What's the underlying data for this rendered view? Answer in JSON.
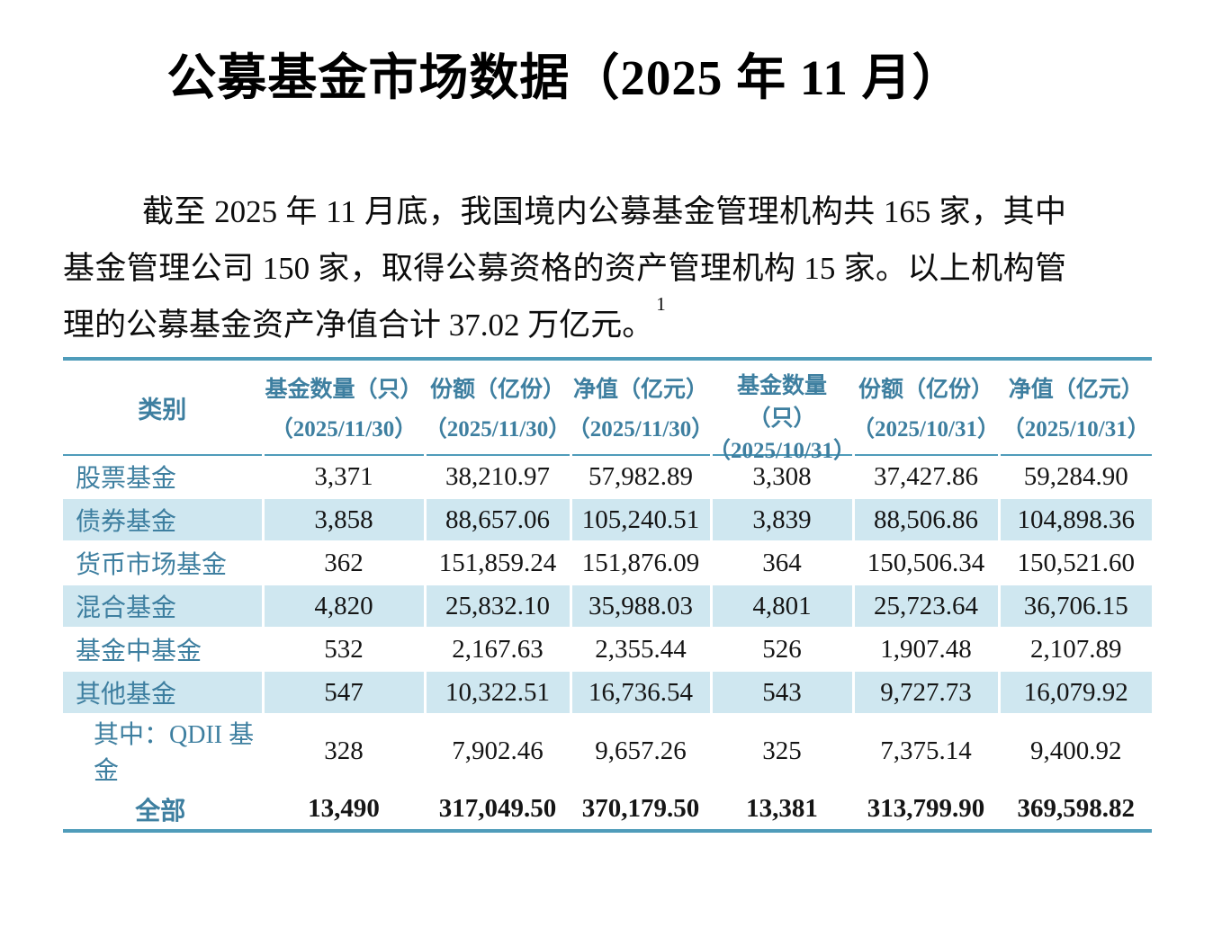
{
  "title": "公募基金市场数据（2025 年 11 月）",
  "intro": {
    "text": "截至 2025 年 11 月底，我国境内公募基金管理机构共 165 家，其中基金管理公司 150 家，取得公募资格的资产管理机构 15 家。以上机构管理的公募基金资产净值合计 37.02 万亿元。",
    "footnote_ref": "1"
  },
  "table": {
    "category_header": "类别",
    "columns": [
      {
        "label": "基金数量（只）",
        "date": "（2025/11/30）"
      },
      {
        "label": "份额（亿份）",
        "date": "（2025/11/30）"
      },
      {
        "label": "净值（亿元）",
        "date": "（2025/11/30）"
      },
      {
        "label": "基金数量（只）",
        "date": "（2025/10/31）"
      },
      {
        "label": "份额（亿份）",
        "date": "（2025/10/31）"
      },
      {
        "label": "净值（亿元）",
        "date": "（2025/10/31）"
      }
    ],
    "rows": [
      {
        "label": "股票基金",
        "values": [
          "3,371",
          "38,210.97",
          "57,982.89",
          "3,308",
          "37,427.86",
          "59,284.90"
        ],
        "shaded": false,
        "style": "normal"
      },
      {
        "label": "债券基金",
        "values": [
          "3,858",
          "88,657.06",
          "105,240.51",
          "3,839",
          "88,506.86",
          "104,898.36"
        ],
        "shaded": true,
        "style": "normal"
      },
      {
        "label": "货币市场基金",
        "values": [
          "362",
          "151,859.24",
          "151,876.09",
          "364",
          "150,506.34",
          "150,521.60"
        ],
        "shaded": false,
        "style": "normal"
      },
      {
        "label": "混合基金",
        "values": [
          "4,820",
          "25,832.10",
          "35,988.03",
          "4,801",
          "25,723.64",
          "36,706.15"
        ],
        "shaded": true,
        "style": "normal"
      },
      {
        "label": "基金中基金",
        "values": [
          "532",
          "2,167.63",
          "2,355.44",
          "526",
          "1,907.48",
          "2,107.89"
        ],
        "shaded": false,
        "style": "normal"
      },
      {
        "label": "其他基金",
        "values": [
          "547",
          "10,322.51",
          "16,736.54",
          "543",
          "9,727.73",
          "16,079.92"
        ],
        "shaded": true,
        "style": "normal"
      },
      {
        "label": "其中：QDII 基金",
        "values": [
          "328",
          "7,902.46",
          "9,657.26",
          "325",
          "7,375.14",
          "9,400.92"
        ],
        "shaded": false,
        "style": "sub"
      },
      {
        "label": "全部",
        "values": [
          "13,490",
          "317,049.50",
          "370,179.50",
          "13,381",
          "313,799.90",
          "369,598.82"
        ],
        "shaded": false,
        "style": "total"
      }
    ]
  },
  "colors": {
    "accent_text": "#3e7fa0",
    "table_border": "#4f9cba",
    "row_shade": "#cfe7f0"
  }
}
